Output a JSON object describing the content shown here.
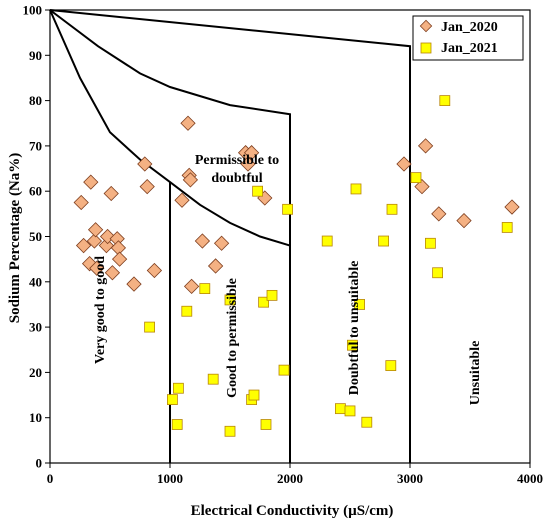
{
  "chart_data": {
    "type": "scatter",
    "xlabel": "Electrical Conductivity (µS/cm)",
    "ylabel": "Sodium Percentage (Na%)",
    "xlim": [
      0,
      4000
    ],
    "ylim": [
      0,
      100
    ],
    "xticks": [
      "0",
      "1000",
      "2000",
      "3000",
      "4000"
    ],
    "yticks": [
      "0",
      "10",
      "20",
      "30",
      "40",
      "50",
      "60",
      "70",
      "80",
      "90",
      "100"
    ],
    "grid": false,
    "legend_position": "top-right",
    "zones": [
      {
        "label": "Very good to good",
        "rotated": true
      },
      {
        "label": "Good to permissible",
        "rotated": true
      },
      {
        "label": "Permissible to doubtful",
        "line1": "Permissible to",
        "line2": "doubtful",
        "rotated": false
      },
      {
        "label": "Doubtful to unsuitable",
        "rotated": true
      },
      {
        "label": "Unsuitable",
        "rotated": true
      }
    ],
    "boundaries": [
      [
        [
          0,
          100
        ],
        [
          3000,
          92
        ],
        [
          3000,
          0
        ]
      ],
      [
        [
          0,
          100
        ],
        [
          400,
          92
        ],
        [
          750,
          86
        ],
        [
          1000,
          83
        ],
        [
          1500,
          79
        ],
        [
          2000,
          77
        ],
        [
          2000,
          0
        ]
      ],
      [
        [
          0,
          100
        ],
        [
          250,
          85
        ],
        [
          500,
          73
        ],
        [
          750,
          67
        ],
        [
          1000,
          62
        ],
        [
          1250,
          57
        ],
        [
          1500,
          53
        ],
        [
          1750,
          50
        ],
        [
          2000,
          48
        ]
      ],
      [
        [
          1000,
          0
        ],
        [
          1000,
          62
        ]
      ]
    ],
    "series": [
      {
        "name": "Jan_2020",
        "marker": "diamond",
        "color": "#F4B183",
        "points": [
          [
            260,
            57.5
          ],
          [
            280,
            48
          ],
          [
            330,
            44
          ],
          [
            340,
            62
          ],
          [
            370,
            49
          ],
          [
            380,
            51.5
          ],
          [
            390,
            43
          ],
          [
            470,
            48
          ],
          [
            480,
            50
          ],
          [
            510,
            59.5
          ],
          [
            520,
            42
          ],
          [
            560,
            49.5
          ],
          [
            570,
            47.5
          ],
          [
            580,
            45
          ],
          [
            700,
            39.5
          ],
          [
            790,
            66
          ],
          [
            810,
            61
          ],
          [
            870,
            42.5
          ],
          [
            1100,
            58
          ],
          [
            1150,
            75
          ],
          [
            1160,
            63.5
          ],
          [
            1170,
            62.5
          ],
          [
            1180,
            39
          ],
          [
            1270,
            49
          ],
          [
            1380,
            43.5
          ],
          [
            1430,
            48.5
          ],
          [
            1630,
            68.5
          ],
          [
            1650,
            66
          ],
          [
            1680,
            68.5
          ],
          [
            1790,
            58.5
          ],
          [
            2950,
            66
          ],
          [
            3100,
            61
          ],
          [
            3130,
            70
          ],
          [
            3240,
            55
          ],
          [
            3450,
            53.5
          ],
          [
            3850,
            56.5
          ]
        ]
      },
      {
        "name": "Jan_2021",
        "marker": "square",
        "color": "#FFFF00",
        "points": [
          [
            830,
            30
          ],
          [
            1020,
            14
          ],
          [
            1060,
            8.5
          ],
          [
            1070,
            16.5
          ],
          [
            1140,
            33.5
          ],
          [
            1290,
            38.5
          ],
          [
            1360,
            18.5
          ],
          [
            1500,
            7
          ],
          [
            1500,
            36
          ],
          [
            1680,
            14
          ],
          [
            1700,
            15
          ],
          [
            1730,
            60
          ],
          [
            1780,
            35.5
          ],
          [
            1800,
            8.5
          ],
          [
            1850,
            37
          ],
          [
            1950,
            20.5
          ],
          [
            1980,
            56
          ],
          [
            2310,
            49
          ],
          [
            2420,
            12
          ],
          [
            2500,
            11.5
          ],
          [
            2520,
            26
          ],
          [
            2550,
            60.5
          ],
          [
            2580,
            35
          ],
          [
            2640,
            9
          ],
          [
            2780,
            49
          ],
          [
            2840,
            21.5
          ],
          [
            2850,
            56
          ],
          [
            3050,
            63
          ],
          [
            3170,
            48.5
          ],
          [
            3230,
            42
          ],
          [
            3290,
            80
          ],
          [
            3810,
            52
          ]
        ]
      }
    ]
  }
}
